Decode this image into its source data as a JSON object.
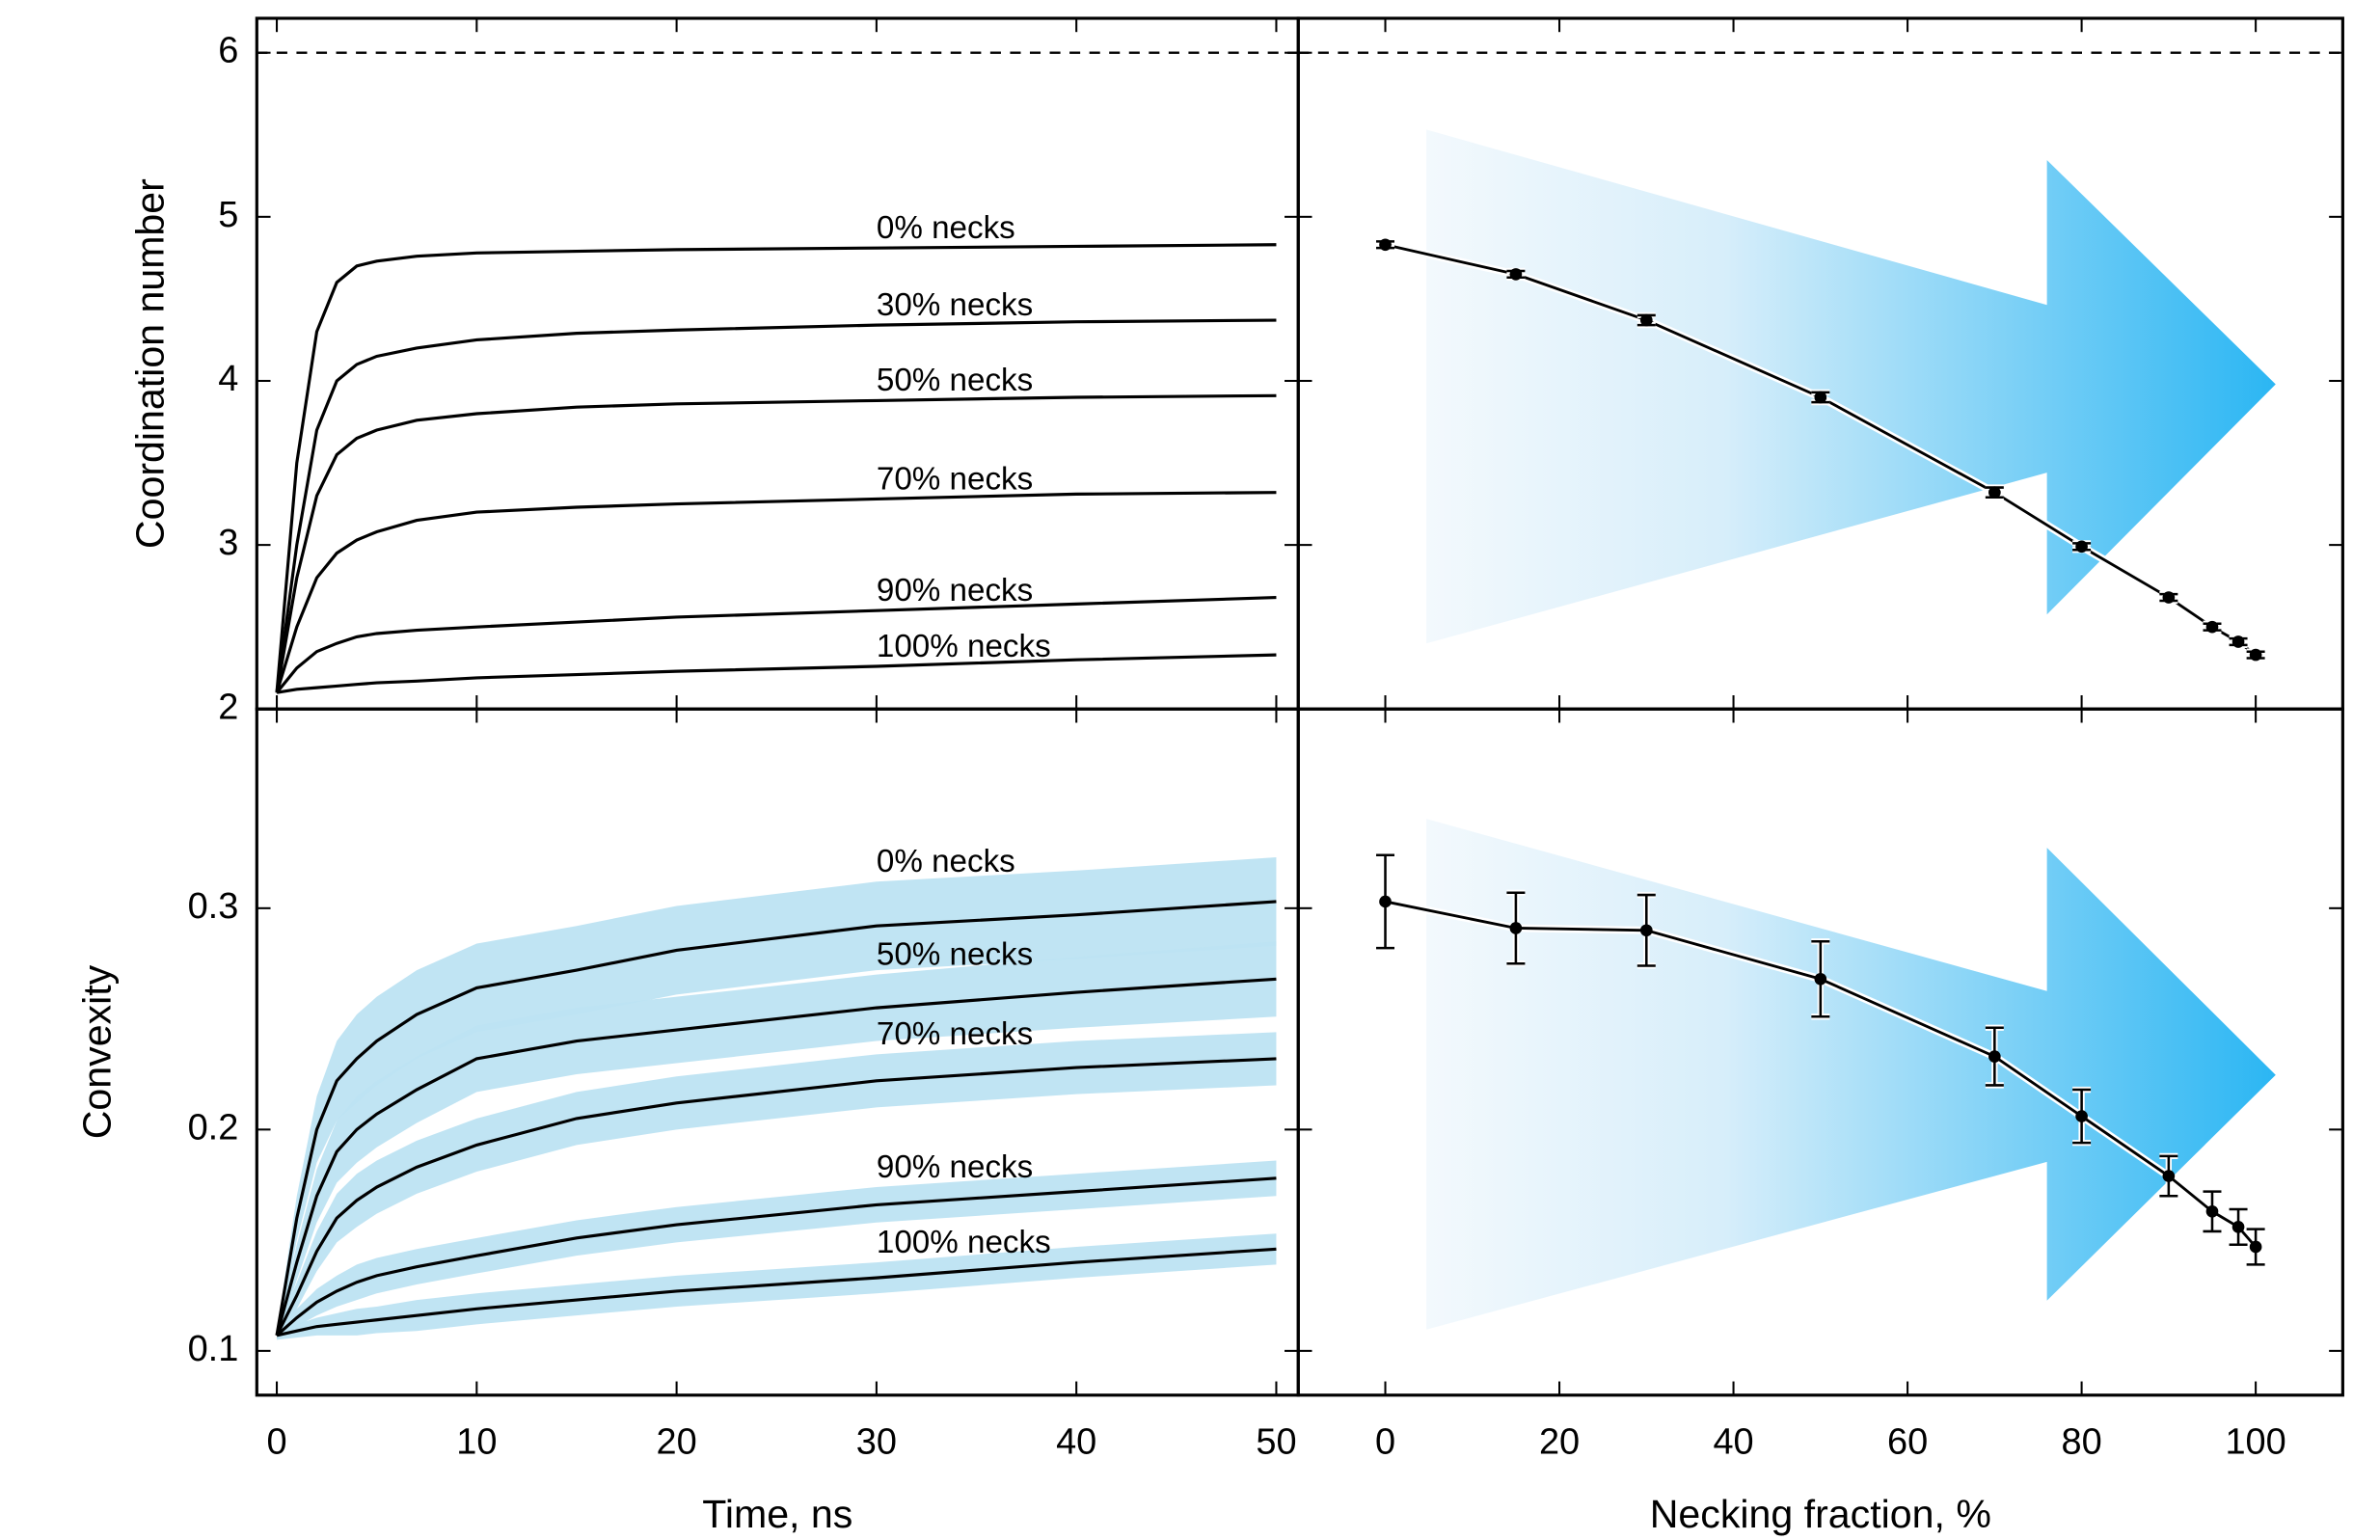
{
  "chart_data": [
    {
      "type": "line",
      "ylabel": "Coordination number",
      "xlim": [
        -1,
        51.1
      ],
      "ylim": [
        2,
        6.21
      ],
      "yticks": [
        2,
        3,
        4,
        5,
        6
      ],
      "hline": 6,
      "x": [
        0,
        1,
        2,
        3,
        4,
        5,
        7,
        10,
        15,
        20,
        30,
        40,
        50
      ],
      "series": [
        {
          "name": "0% necks",
          "color": "#000000",
          "values": [
            2.1,
            3.5,
            4.3,
            4.6,
            4.7,
            4.73,
            4.76,
            4.78,
            4.79,
            4.8,
            4.81,
            4.82,
            4.83
          ]
        },
        {
          "name": "30% necks",
          "color": "#000000",
          "values": [
            2.1,
            3.0,
            3.7,
            4.0,
            4.1,
            4.15,
            4.2,
            4.25,
            4.29,
            4.31,
            4.34,
            4.36,
            4.37
          ]
        },
        {
          "name": "50% necks",
          "color": "#000000",
          "values": [
            2.1,
            2.8,
            3.3,
            3.55,
            3.65,
            3.7,
            3.76,
            3.8,
            3.84,
            3.86,
            3.88,
            3.9,
            3.91
          ]
        },
        {
          "name": "70% necks",
          "color": "#000000",
          "values": [
            2.1,
            2.5,
            2.8,
            2.95,
            3.03,
            3.08,
            3.15,
            3.2,
            3.23,
            3.25,
            3.28,
            3.31,
            3.32
          ]
        },
        {
          "name": "90% necks",
          "color": "#000000",
          "values": [
            2.1,
            2.25,
            2.35,
            2.4,
            2.44,
            2.46,
            2.48,
            2.5,
            2.53,
            2.56,
            2.6,
            2.64,
            2.68
          ]
        },
        {
          "name": "100% necks",
          "color": "#000000",
          "values": [
            2.1,
            2.12,
            2.13,
            2.14,
            2.15,
            2.16,
            2.17,
            2.19,
            2.21,
            2.23,
            2.26,
            2.3,
            2.33
          ]
        }
      ]
    },
    {
      "type": "errorbar",
      "xlim": [
        -10,
        110
      ],
      "ylim": [
        2,
        6.21
      ],
      "hline": 6,
      "color": "#000000",
      "x": [
        0,
        15,
        30,
        50,
        70,
        80,
        90,
        95,
        98,
        100
      ],
      "values": [
        4.83,
        4.65,
        4.37,
        3.9,
        3.32,
        2.99,
        2.68,
        2.5,
        2.41,
        2.33
      ],
      "errors": [
        0.02,
        0.02,
        0.03,
        0.03,
        0.03,
        0.02,
        0.02,
        0.02,
        0.02,
        0.02
      ]
    },
    {
      "type": "line",
      "ylabel": "Convexity",
      "xlabel": "Time, ns",
      "xlim": [
        -1,
        51.1
      ],
      "ylim": [
        0.08,
        0.39
      ],
      "yticks": [
        0.1,
        0.2,
        0.3
      ],
      "xticks": [
        0,
        10,
        20,
        30,
        40,
        50
      ],
      "band_color": "#bde3f2",
      "x": [
        0,
        1,
        2,
        3,
        4,
        5,
        7,
        10,
        15,
        20,
        30,
        40,
        50
      ],
      "series": [
        {
          "name": "0% necks",
          "color": "#000000",
          "values": [
            0.107,
            0.16,
            0.2,
            0.222,
            0.232,
            0.24,
            0.252,
            0.264,
            0.272,
            0.281,
            0.292,
            0.297,
            0.303
          ],
          "band": [
            0.002,
            0.01,
            0.015,
            0.018,
            0.02,
            0.02,
            0.02,
            0.02,
            0.02,
            0.02,
            0.02,
            0.02,
            0.02
          ]
        },
        {
          "name": "50% necks",
          "color": "#000000",
          "values": [
            0.107,
            0.14,
            0.17,
            0.19,
            0.2,
            0.207,
            0.218,
            0.232,
            0.24,
            0.245,
            0.255,
            0.262,
            0.268
          ],
          "band": [
            0.002,
            0.008,
            0.012,
            0.014,
            0.015,
            0.015,
            0.015,
            0.015,
            0.015,
            0.015,
            0.015,
            0.016,
            0.017
          ]
        },
        {
          "name": "70% necks",
          "color": "#000000",
          "values": [
            0.107,
            0.125,
            0.145,
            0.16,
            0.168,
            0.174,
            0.183,
            0.193,
            0.205,
            0.212,
            0.222,
            0.228,
            0.232
          ],
          "band": [
            0.002,
            0.006,
            0.009,
            0.011,
            0.012,
            0.012,
            0.012,
            0.012,
            0.012,
            0.012,
            0.012,
            0.012,
            0.012
          ]
        },
        {
          "name": "90% necks",
          "color": "#000000",
          "values": [
            0.107,
            0.115,
            0.122,
            0.127,
            0.131,
            0.134,
            0.138,
            0.143,
            0.151,
            0.157,
            0.166,
            0.172,
            0.178
          ],
          "band": [
            0.002,
            0.004,
            0.006,
            0.007,
            0.008,
            0.008,
            0.008,
            0.008,
            0.008,
            0.008,
            0.008,
            0.008,
            0.008
          ]
        },
        {
          "name": "100% necks",
          "color": "#000000",
          "values": [
            0.107,
            0.109,
            0.111,
            0.112,
            0.113,
            0.114,
            0.116,
            0.119,
            0.123,
            0.127,
            0.133,
            0.14,
            0.146
          ],
          "band": [
            0.002,
            0.003,
            0.004,
            0.005,
            0.006,
            0.006,
            0.007,
            0.007,
            0.007,
            0.007,
            0.007,
            0.007,
            0.007
          ]
        }
      ]
    },
    {
      "type": "errorbar",
      "xlabel": "Necking fraction, %",
      "xlim": [
        -10,
        110
      ],
      "ylim": [
        0.08,
        0.39
      ],
      "xticks": [
        0,
        20,
        40,
        60,
        80,
        100
      ],
      "color": "#000000",
      "x": [
        0,
        15,
        30,
        50,
        70,
        80,
        90,
        95,
        98,
        100
      ],
      "values": [
        0.303,
        0.291,
        0.29,
        0.268,
        0.233,
        0.206,
        0.179,
        0.163,
        0.156,
        0.147
      ],
      "errors": [
        0.021,
        0.016,
        0.016,
        0.017,
        0.013,
        0.012,
        0.009,
        0.009,
        0.008,
        0.008
      ]
    }
  ]
}
